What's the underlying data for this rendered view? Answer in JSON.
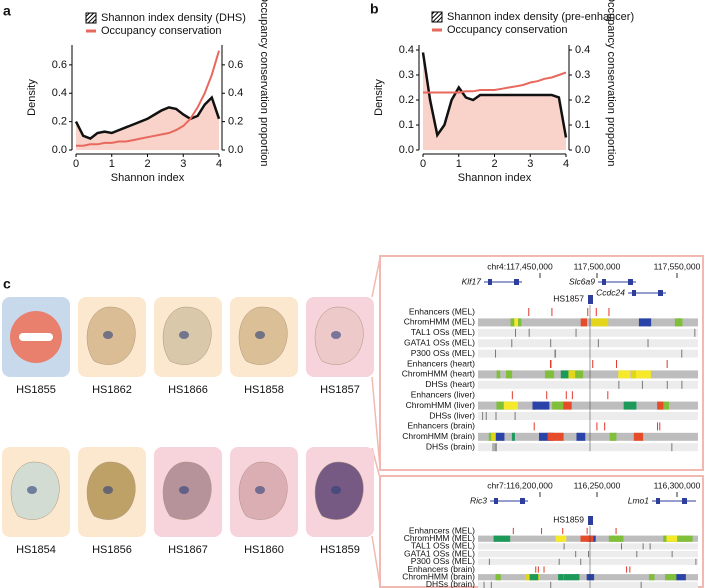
{
  "chart_data": [
    {
      "type": "line",
      "panel": "a",
      "x": [
        0,
        0.2,
        0.4,
        0.6,
        0.8,
        1.0,
        1.2,
        1.4,
        1.6,
        1.8,
        2.0,
        2.2,
        2.4,
        2.6,
        2.8,
        3.0,
        3.2,
        3.4,
        3.6,
        3.8,
        4.0
      ],
      "x_label": "Shannon index",
      "y_label": "Density",
      "y2_label": "Occupancy conservation proportion",
      "xlim": [
        0,
        4
      ],
      "xticks": [
        0,
        1,
        2,
        3,
        4
      ],
      "ylim": [
        0,
        0.74
      ],
      "yticks": [
        {
          "value": 0,
          "label": "0.0"
        },
        {
          "value": 0.2,
          "label": "0.2"
        },
        {
          "value": 0.4,
          "label": "0.4"
        },
        {
          "value": 0.6,
          "label": "0.6"
        }
      ],
      "y2lim": [
        0,
        0.74
      ],
      "y2ticks": [
        {
          "value": 0,
          "label": "0.0"
        },
        {
          "value": 0.2,
          "label": "0.2"
        },
        {
          "value": 0.4,
          "label": "0.4"
        },
        {
          "value": 0.6,
          "label": "0.6"
        }
      ],
      "legend": "top-left",
      "series": [
        {
          "name": "Shannon index density (DHS)",
          "color": "#111111",
          "fill": "#f9d3ca",
          "values": [
            0.2,
            0.1,
            0.08,
            0.12,
            0.13,
            0.12,
            0.14,
            0.16,
            0.18,
            0.2,
            0.22,
            0.25,
            0.28,
            0.3,
            0.29,
            0.25,
            0.22,
            0.24,
            0.32,
            0.37,
            0.22
          ]
        },
        {
          "name": "Occupancy conservation",
          "color": "#e8685e",
          "axis": "y2",
          "values": [
            0.03,
            0.03,
            0.04,
            0.04,
            0.05,
            0.05,
            0.06,
            0.06,
            0.07,
            0.08,
            0.09,
            0.1,
            0.11,
            0.12,
            0.14,
            0.17,
            0.22,
            0.3,
            0.4,
            0.53,
            0.7
          ]
        }
      ]
    },
    {
      "type": "line",
      "panel": "b",
      "x": [
        0,
        0.2,
        0.4,
        0.6,
        0.8,
        1.0,
        1.2,
        1.4,
        1.6,
        1.8,
        2.0,
        2.2,
        2.4,
        2.6,
        2.8,
        3.0,
        3.2,
        3.4,
        3.6,
        3.8,
        4.0
      ],
      "x_label": "Shannon index",
      "y_label": "Density",
      "y2_label": "Occupancy conservation proportion",
      "xlim": [
        0,
        4
      ],
      "xticks": [
        0,
        1,
        2,
        3,
        4
      ],
      "ylim": [
        0,
        0.42
      ],
      "yticks": [
        {
          "value": 0,
          "label": "0.0"
        },
        {
          "value": 0.1,
          "label": "0.1"
        },
        {
          "value": 0.2,
          "label": "0.2"
        },
        {
          "value": 0.3,
          "label": "0.3"
        },
        {
          "value": 0.4,
          "label": "0.4"
        }
      ],
      "y2lim": [
        0,
        0.42
      ],
      "y2ticks": [
        {
          "value": 0,
          "label": "0.0"
        },
        {
          "value": 0.1,
          "label": "0.1"
        },
        {
          "value": 0.2,
          "label": "0.2"
        },
        {
          "value": 0.3,
          "label": "0.3"
        },
        {
          "value": 0.4,
          "label": "0.4"
        }
      ],
      "legend": "top-left",
      "series": [
        {
          "name": "Shannon index density (pre-enhancer)",
          "color": "#111111",
          "fill": "#f9d3ca",
          "values": [
            0.39,
            0.2,
            0.06,
            0.1,
            0.2,
            0.25,
            0.21,
            0.2,
            0.22,
            0.22,
            0.22,
            0.22,
            0.22,
            0.22,
            0.22,
            0.22,
            0.22,
            0.22,
            0.22,
            0.21,
            0.05
          ]
        },
        {
          "name": "Occupancy conservation",
          "color": "#e8685e",
          "axis": "y2",
          "values": [
            0.23,
            0.23,
            0.23,
            0.23,
            0.23,
            0.23,
            0.235,
            0.235,
            0.24,
            0.24,
            0.24,
            0.245,
            0.25,
            0.255,
            0.26,
            0.27,
            0.275,
            0.285,
            0.29,
            0.3,
            0.31
          ]
        }
      ]
    }
  ],
  "panel_c": {
    "label": "c",
    "embryos": [
      {
        "label": "HS1855",
        "color": "#c9d9ec"
      },
      {
        "label": "HS1862",
        "color": "#fce8cf"
      },
      {
        "label": "HS1866",
        "color": "#fce8cf"
      },
      {
        "label": "HS1858",
        "color": "#fce8cf"
      },
      {
        "label": "HS1857",
        "color": "#f7d3dc"
      },
      {
        "label": "HS1854",
        "color": "#fce8cf"
      },
      {
        "label": "HS1856",
        "color": "#fce8cf"
      },
      {
        "label": "HS1867",
        "color": "#f7d3dc"
      },
      {
        "label": "HS1860",
        "color": "#f7d3dc"
      },
      {
        "label": "HS1859",
        "color": "#f7d3dc"
      }
    ],
    "browsers": [
      {
        "coords": [
          "chr4:117,450,000",
          "117,500,000",
          "117,550,000"
        ],
        "genes": [
          "Klf17",
          "Slc6a9",
          "Ccdc24"
        ],
        "element": "HS1857",
        "tracks": [
          "Enhancers (MEL)",
          "ChromHMM (MEL)",
          "TAL1 OSs (MEL)",
          "GATA1 OSs (MEL)",
          "P300 OSs (MEL)",
          "Enhancers (heart)",
          "ChromHMM (heart)",
          "DHSs (heart)",
          "Enhancers (liver)",
          "ChromHMM (liver)",
          "DHSs (liver)",
          "Enhancers (brain)",
          "ChromHMM (brain)",
          "DHSs (brain)"
        ]
      },
      {
        "coords": [
          "chr7:116,200,000",
          "116,250,000",
          "116,300,000"
        ],
        "genes": [
          "Ric3",
          "Lmo1"
        ],
        "element": "HS1859",
        "tracks": [
          "Enhancers (MEL)",
          "ChromHMM (MEL)",
          "TAL1 OSs (MEL)",
          "GATA1 OSs (MEL)",
          "P300 OSs (MEL)",
          "Enhancers (brain)",
          "ChromHMM (brain)",
          "DHSs (brain)"
        ]
      }
    ]
  }
}
